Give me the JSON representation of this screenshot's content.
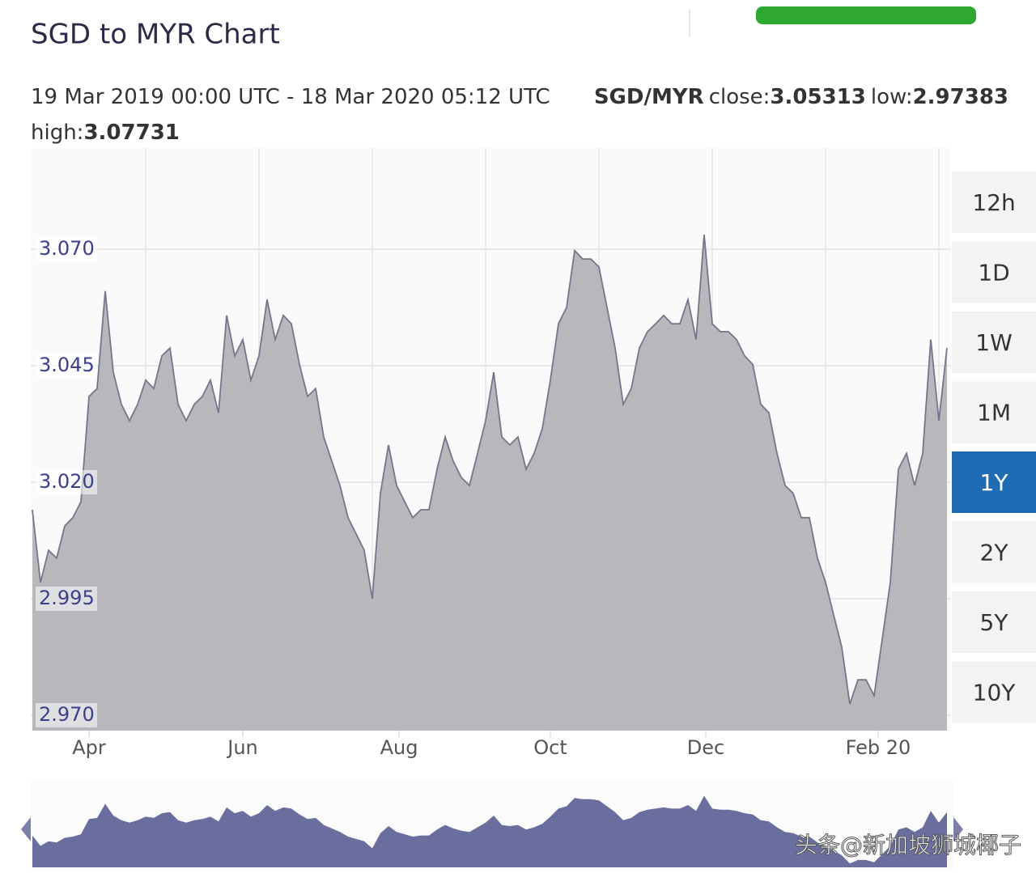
{
  "header": {
    "title": "SGD to MYR Chart",
    "period": "19 Mar 2019 00:00 UTC - 18 Mar 2020 05:12 UTC",
    "pair": "SGD/MYR",
    "close_label": "close:",
    "close": "3.05313",
    "low_label": "low:",
    "low": "2.97383",
    "high_label": "high:",
    "high": "3.07731"
  },
  "range_buttons": [
    "12h",
    "1D",
    "1W",
    "1M",
    "1Y",
    "2Y",
    "5Y",
    "10Y"
  ],
  "active_range": "1Y",
  "watermark": "头条@新加坡狮城椰子",
  "chart_data": {
    "type": "area",
    "fill_color": "#b4b4b8",
    "line_color": "#74768c",
    "navigator_color": "#6a6e9e",
    "values": [
      3.0141,
      2.9985,
      3.0054,
      3.0037,
      3.0106,
      3.0124,
      3.0158,
      3.0384,
      3.0401,
      3.061,
      3.0436,
      3.0367,
      3.0332,
      3.0367,
      3.0419,
      3.0401,
      3.0471,
      3.0488,
      3.0367,
      3.0332,
      3.0367,
      3.0384,
      3.0419,
      3.0349,
      3.0558,
      3.0471,
      3.0506,
      3.0419,
      3.0471,
      3.0592,
      3.0506,
      3.0558,
      3.054,
      3.0453,
      3.0384,
      3.0401,
      3.0297,
      3.0245,
      3.0193,
      3.0124,
      3.0089,
      3.0054,
      2.995,
      3.0176,
      3.028,
      3.0193,
      3.0158,
      3.0124,
      3.0141,
      3.0141,
      3.0228,
      3.0297,
      3.0245,
      3.021,
      3.0193,
      3.0262,
      3.0332,
      3.0436,
      3.0297,
      3.028,
      3.0297,
      3.0228,
      3.0262,
      3.0315,
      3.0419,
      3.054,
      3.0575,
      3.0697,
      3.0679,
      3.0679,
      3.0662,
      3.0575,
      3.0488,
      3.0367,
      3.0401,
      3.0488,
      3.0523,
      3.054,
      3.0558,
      3.054,
      3.054,
      3.0592,
      3.0506,
      3.0731,
      3.054,
      3.0523,
      3.0523,
      3.0506,
      3.0471,
      3.0453,
      3.0367,
      3.0349,
      3.0262,
      3.0193,
      3.0176,
      3.0124,
      3.0124,
      3.0037,
      2.9985,
      2.9915,
      2.9846,
      2.9724,
      2.9776,
      2.9776,
      2.9742,
      2.9863,
      2.9985,
      3.0228,
      3.0262,
      3.0193,
      3.0262,
      3.0506,
      3.0332,
      3.0488
    ],
    "xlim": [
      -0.2,
      113.5
    ],
    "xticks": [
      {
        "value": 7,
        "label": "Apr"
      },
      {
        "value": 26,
        "label": "Jun"
      },
      {
        "value": 45.3,
        "label": "Aug"
      },
      {
        "value": 64,
        "label": "Oct"
      },
      {
        "value": 83.2,
        "label": "Dec"
      },
      {
        "value": 104.5,
        "label": "Feb 20"
      }
    ],
    "ylim": [
      2.9667,
      3.0917
    ],
    "yticks": [
      {
        "value": 3.07,
        "label": "3.070"
      },
      {
        "value": 3.045,
        "label": "3.045"
      },
      {
        "value": 3.02,
        "label": "3.020"
      },
      {
        "value": 2.995,
        "label": "2.995"
      },
      {
        "value": 2.97,
        "label": "2.970"
      }
    ],
    "grid": true
  }
}
